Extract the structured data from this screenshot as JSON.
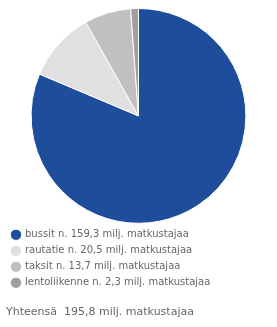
{
  "chart_data": {
    "type": "pie",
    "categories": [
      "bussit n. 159,3 milj. matkustajaa",
      "rautatie n. 20,5 milj. matkustajaa",
      "taksit n. 13,7 milj. matkustajaa",
      "lentoliikenne n. 2,3 milj. matkustajaa"
    ],
    "values": [
      159.3,
      20.5,
      13.7,
      2.3
    ],
    "colors": [
      "#1e4d9b",
      "#e0e0e0",
      "#c0c0c0",
      "#a0a0a0"
    ],
    "legend": "bottom",
    "annotations": [
      "Yhteensä  195,8 milj. matkustajaa"
    ]
  }
}
